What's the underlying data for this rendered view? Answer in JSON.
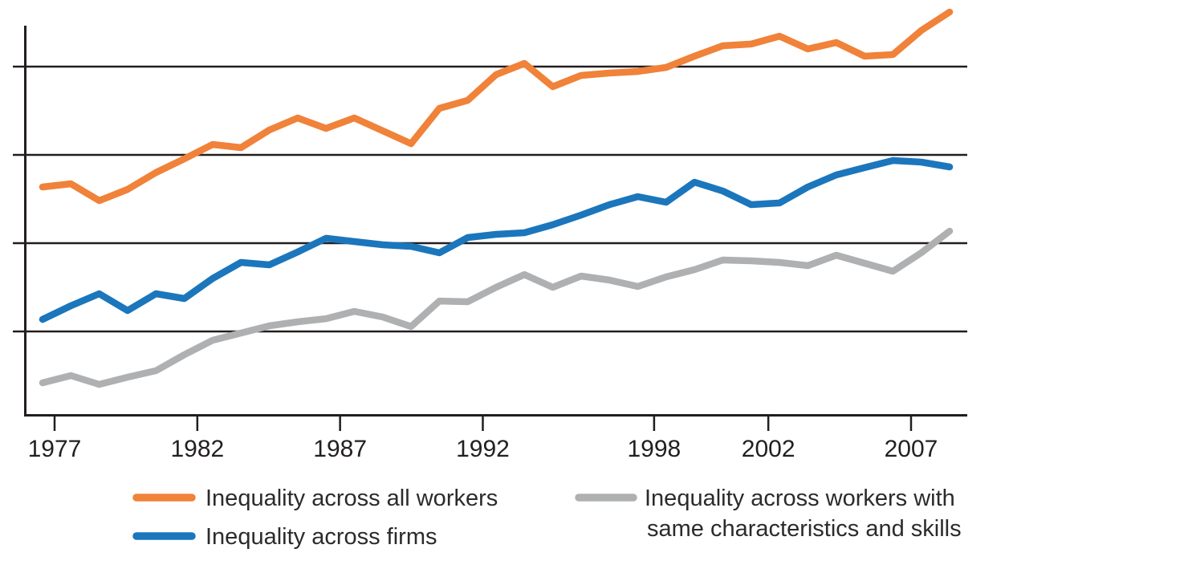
{
  "chart_data": {
    "type": "line",
    "title": "",
    "xlabel": "",
    "ylabel": "",
    "x_tick_labels": [
      1977,
      1982,
      1987,
      1992,
      1998,
      2002,
      2007
    ],
    "x": [
      1977,
      1978,
      1979,
      1980,
      1981,
      1982,
      1983,
      1984,
      1985,
      1986,
      1987,
      1988,
      1989,
      1990,
      1991,
      1992,
      1993,
      1994,
      1995,
      1996,
      1997,
      1998,
      1999,
      2000,
      2001,
      2002,
      2003,
      2004,
      2005,
      2006,
      2007,
      2008,
      2009
    ],
    "series": [
      {
        "key": "all_workers",
        "name": "Inequality across all workers",
        "color": "#f08239",
        "values": [
          2.636,
          2.673,
          2.482,
          2.609,
          2.8,
          2.955,
          3.118,
          3.082,
          3.282,
          3.418,
          3.3,
          3.418,
          3.273,
          3.127,
          3.527,
          3.618,
          3.909,
          4.036,
          3.773,
          3.9,
          3.927,
          3.945,
          3.991,
          4.118,
          4.236,
          4.255,
          4.345,
          4.2,
          4.273,
          4.118,
          4.136,
          4.409,
          4.618
        ]
      },
      {
        "key": "firms",
        "name": "Inequality across firms",
        "color": "#1b76bc",
        "values": [
          1.136,
          1.291,
          1.427,
          1.236,
          1.427,
          1.373,
          1.6,
          1.782,
          1.755,
          1.9,
          2.055,
          2.018,
          1.982,
          1.964,
          1.891,
          2.064,
          2.1,
          2.118,
          2.209,
          2.318,
          2.436,
          2.527,
          2.464,
          2.691,
          2.591,
          2.436,
          2.455,
          2.636,
          2.773,
          2.855,
          2.936,
          2.918,
          2.864
        ]
      },
      {
        "key": "same_skills",
        "name": "Inequality across workers with same characteristics and skills",
        "color": "#afb0b2",
        "values": [
          0.418,
          0.5,
          0.4,
          0.482,
          0.555,
          0.736,
          0.9,
          0.982,
          1.064,
          1.109,
          1.145,
          1.227,
          1.164,
          1.055,
          1.345,
          1.336,
          1.5,
          1.645,
          1.5,
          1.627,
          1.582,
          1.509,
          1.618,
          1.7,
          1.809,
          1.8,
          1.782,
          1.745,
          1.864,
          1.773,
          1.682,
          1.891,
          2.136
        ]
      }
    ],
    "y_axis": {
      "labels_visible": false,
      "gridlines_at": [
        1,
        2,
        3,
        4
      ],
      "unit": "index (one horizontal gridline spacing = 1)",
      "range": [
        0.05,
        4.47
      ]
    },
    "grid": "horizontal gridlines only",
    "legend_position": "bottom"
  },
  "legend": {
    "items": [
      {
        "series": "all_workers",
        "lines": [
          "Inequality across all workers"
        ]
      },
      {
        "series": "firms",
        "lines": [
          "Inequality across firms"
        ]
      },
      {
        "series": "same_skills",
        "lines": [
          "Inequality across workers with",
          "same characteristics and skills"
        ]
      }
    ]
  },
  "colors": {
    "axis": "#221e1f",
    "tick_text": "#231f20",
    "legend_text": "#2b2b2b",
    "background": "#ffffff"
  }
}
